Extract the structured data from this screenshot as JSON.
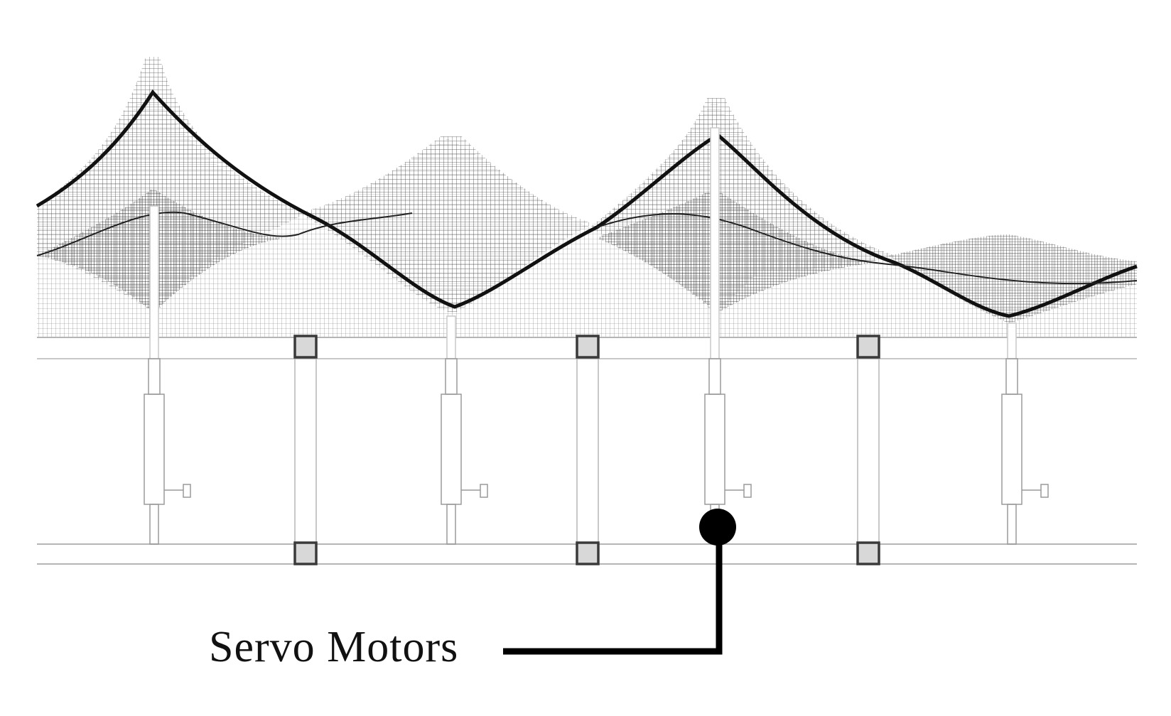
{
  "figure": {
    "callout_label": "Servo Motors"
  },
  "style": {
    "mesh_color": "#2a2a2a",
    "frame_color": "#b5b5b5",
    "joint_stroke": "#3a3a3a",
    "joint_fill": "#d8d8d8",
    "callout_color": "#000000",
    "background": "#ffffff"
  },
  "structure": {
    "actuators": 4,
    "joints_per_rail": 3,
    "mesh_peaks": 5
  }
}
